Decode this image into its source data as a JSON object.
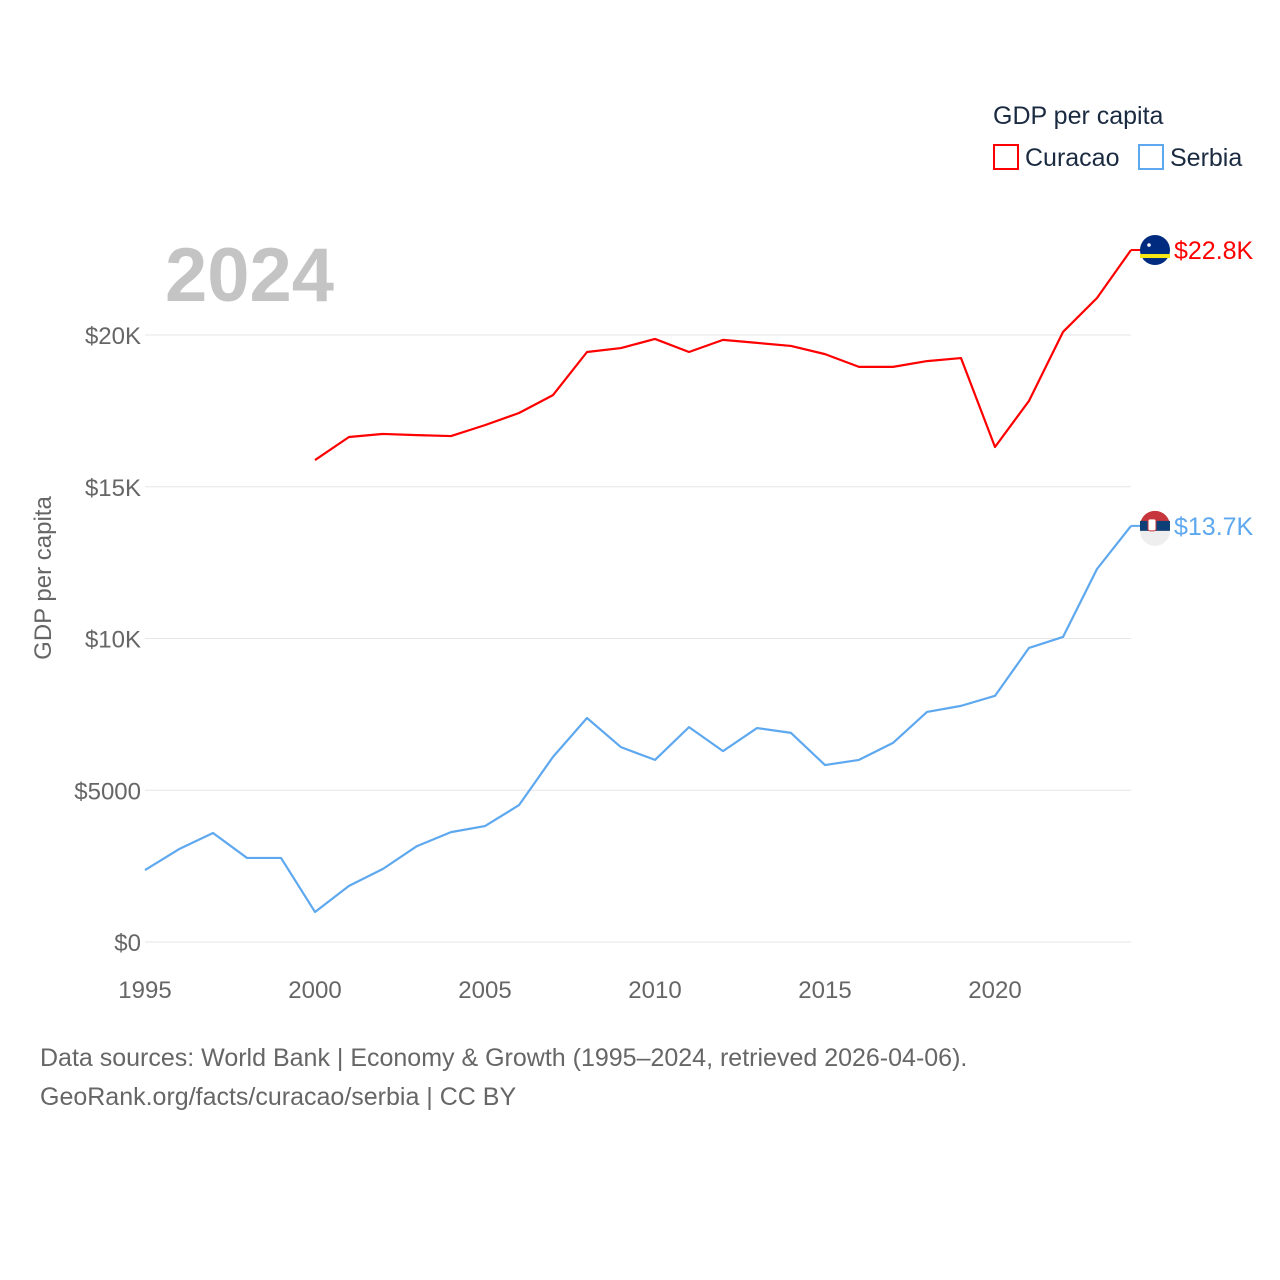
{
  "chart_data": {
    "type": "line",
    "title": "GDP per capita",
    "ylabel": "GDP per capita",
    "xlabel": "",
    "year_label": "2024",
    "xlim": [
      1995,
      2024
    ],
    "ylim": [
      0,
      23000
    ],
    "x_ticks": [
      1995,
      2000,
      2005,
      2010,
      2015,
      2020
    ],
    "y_ticks": [
      {
        "v": 0,
        "label": "$0"
      },
      {
        "v": 5000,
        "label": "$5000"
      },
      {
        "v": 10000,
        "label": "$10K"
      },
      {
        "v": 15000,
        "label": "$15K"
      },
      {
        "v": 20000,
        "label": "$20K"
      }
    ],
    "grid": true,
    "legend_position": "top-right",
    "series": [
      {
        "name": "Curacao",
        "color": "#ff0000",
        "end_label": "$22.8K",
        "flag": "curacao-flag",
        "x": [
          2000,
          2001,
          2002,
          2003,
          2004,
          2005,
          2006,
          2007,
          2008,
          2009,
          2010,
          2011,
          2012,
          2013,
          2014,
          2015,
          2016,
          2017,
          2018,
          2019,
          2020,
          2021,
          2022,
          2023,
          2024
        ],
        "values": [
          15880,
          16640,
          16740,
          16700,
          16670,
          17030,
          17430,
          18020,
          19440,
          19570,
          19870,
          19440,
          19840,
          19740,
          19640,
          19370,
          18950,
          18950,
          19140,
          19240,
          16310,
          17830,
          20100,
          21220,
          22800
        ]
      },
      {
        "name": "Serbia",
        "color": "#5ea8ef",
        "end_label": "$13.7K",
        "flag": "serbia-flag",
        "x": [
          1995,
          1996,
          1997,
          1998,
          1999,
          2000,
          2001,
          2002,
          2003,
          2004,
          2005,
          2006,
          2007,
          2008,
          2009,
          2010,
          2011,
          2012,
          2013,
          2014,
          2015,
          2016,
          2017,
          2018,
          2019,
          2020,
          2021,
          2022,
          2023,
          2024
        ],
        "values": [
          2370,
          3060,
          3590,
          2770,
          2770,
          990,
          1850,
          2410,
          3160,
          3620,
          3820,
          4510,
          6100,
          7380,
          6420,
          6000,
          7080,
          6290,
          7050,
          6890,
          5830,
          6000,
          6560,
          7580,
          7780,
          8110,
          9690,
          10050,
          12290,
          13710
        ]
      }
    ]
  },
  "footer": {
    "line1": "Data sources: World Bank | Economy & Growth (1995–2024, retrieved 2026-04-06).",
    "line2": "GeoRank.org/facts/curacao/serbia | CC BY"
  }
}
